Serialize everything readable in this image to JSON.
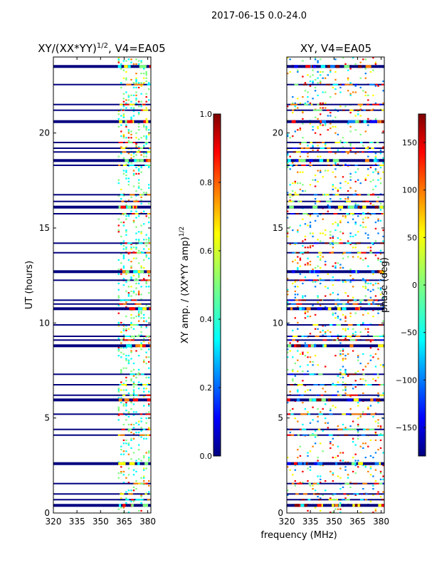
{
  "suptitle": "2017-06-15 0.0-24.0",
  "chart_data": [
    {
      "type": "heatmap",
      "title": "XY/(XX*YY)",
      "title_exp": "1/2",
      "title_tail": ", V4=EA05",
      "ylabel": "UT (hours)",
      "xlim": [
        320,
        382
      ],
      "ylim": [
        0,
        24
      ],
      "xticks": [
        320,
        335,
        350,
        365,
        380
      ],
      "yticks": [
        0,
        5,
        10,
        15,
        20
      ],
      "colorbar": {
        "label": "XY amp. / (XX*YY amp)",
        "label_exp": "1/2",
        "range": [
          0.0,
          1.0
        ],
        "ticks": [
          "0.0",
          "0.2",
          "0.4",
          "0.6",
          "0.8",
          "1.0"
        ]
      },
      "channel_band_mhz": [
        361,
        382
      ],
      "flagged_row_hours": [
        0.4,
        0.7,
        1.0,
        1.55,
        2.6,
        4.1,
        4.4,
        5.2,
        5.95,
        6.2,
        6.75,
        7.3,
        8.8,
        9.1,
        9.3,
        9.9,
        10.75,
        11.0,
        11.2,
        12.25,
        12.7,
        13.7,
        14.2,
        15.75,
        16.1,
        16.4,
        16.75,
        18.3,
        18.55,
        19.0,
        19.2,
        19.5,
        20.6,
        21.2,
        21.5,
        22.55,
        23.5
      ],
      "dominant_values": [
        "low (near 0.0)",
        "high (up to ~0.9)"
      ]
    },
    {
      "type": "heatmap",
      "title": "XY, V4=EA05",
      "xlim": [
        320,
        382
      ],
      "ylim": [
        0,
        24
      ],
      "xticks": [
        320,
        335,
        350,
        365,
        380
      ],
      "yticks": [
        0,
        5,
        10,
        15,
        20
      ],
      "colorbar": {
        "label": "phase (deg)",
        "range": [
          -180,
          180
        ],
        "ticks": [
          "−150",
          "−100",
          "−50",
          "0",
          "50",
          "100",
          "150"
        ]
      },
      "flagged_row_hours": [
        0.4,
        0.7,
        1.0,
        1.55,
        2.6,
        4.1,
        4.4,
        5.2,
        5.95,
        6.2,
        6.75,
        7.3,
        8.8,
        9.1,
        9.3,
        9.9,
        10.75,
        11.0,
        11.2,
        12.25,
        12.7,
        13.7,
        14.2,
        15.75,
        16.1,
        16.4,
        16.75,
        18.3,
        18.55,
        19.0,
        19.2,
        19.5,
        20.6,
        21.2,
        21.5,
        22.55,
        23.5
      ]
    }
  ],
  "xlabel": "frequency (MHz)",
  "colors": {
    "colormap": [
      "#00007f",
      "#0000ff",
      "#007fff",
      "#00ffff",
      "#7fff7f",
      "#ffff00",
      "#ff7f00",
      "#ff0000",
      "#7f0000"
    ],
    "axis": "#000000",
    "background": "#ffffff"
  }
}
